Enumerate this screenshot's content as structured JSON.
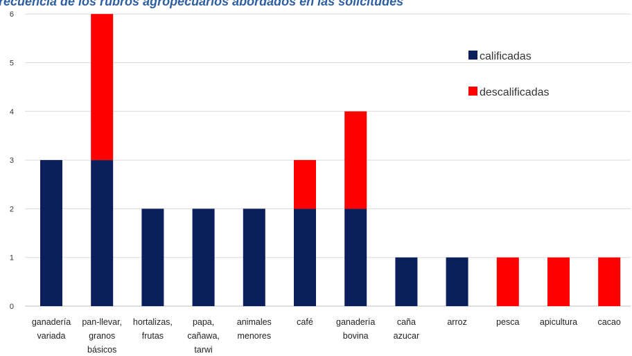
{
  "title": "b. Frecuencia de los rubros agropecuarios abordados en las solicitudes",
  "chart_data": {
    "type": "bar",
    "stacked": true,
    "title": "b. Frecuencia de los rubros agropecuarios abordados en las solicitudes",
    "xlabel": "",
    "ylabel": "",
    "ylim": [
      0,
      6
    ],
    "yticks": [
      "0",
      "1",
      "2",
      "3",
      "4",
      "5",
      "6"
    ],
    "grid": true,
    "legend_position": "top-right",
    "categories": [
      [
        "ganadería",
        "variada"
      ],
      [
        "pan-llevar,",
        "granos",
        "básicos"
      ],
      [
        "hortalizas,",
        "frutas"
      ],
      [
        "papa,",
        "cañawa,",
        "tarwi"
      ],
      [
        "animales",
        "menores"
      ],
      [
        "café"
      ],
      [
        "ganadería",
        "bovina"
      ],
      [
        "caña",
        "azucar"
      ],
      [
        "arroz"
      ],
      [
        "pesca"
      ],
      [
        "apicultura"
      ],
      [
        "cacao"
      ]
    ],
    "series": [
      {
        "name": "calificadas",
        "color": "#0b1f5c",
        "values": [
          3,
          3,
          2,
          2,
          2,
          2,
          2,
          1,
          1,
          0,
          0,
          0
        ]
      },
      {
        "name": "descalificadas",
        "color": "#ff0000",
        "values": [
          0,
          3,
          0,
          0,
          0,
          1,
          2,
          0,
          0,
          1,
          1,
          1
        ]
      }
    ]
  }
}
